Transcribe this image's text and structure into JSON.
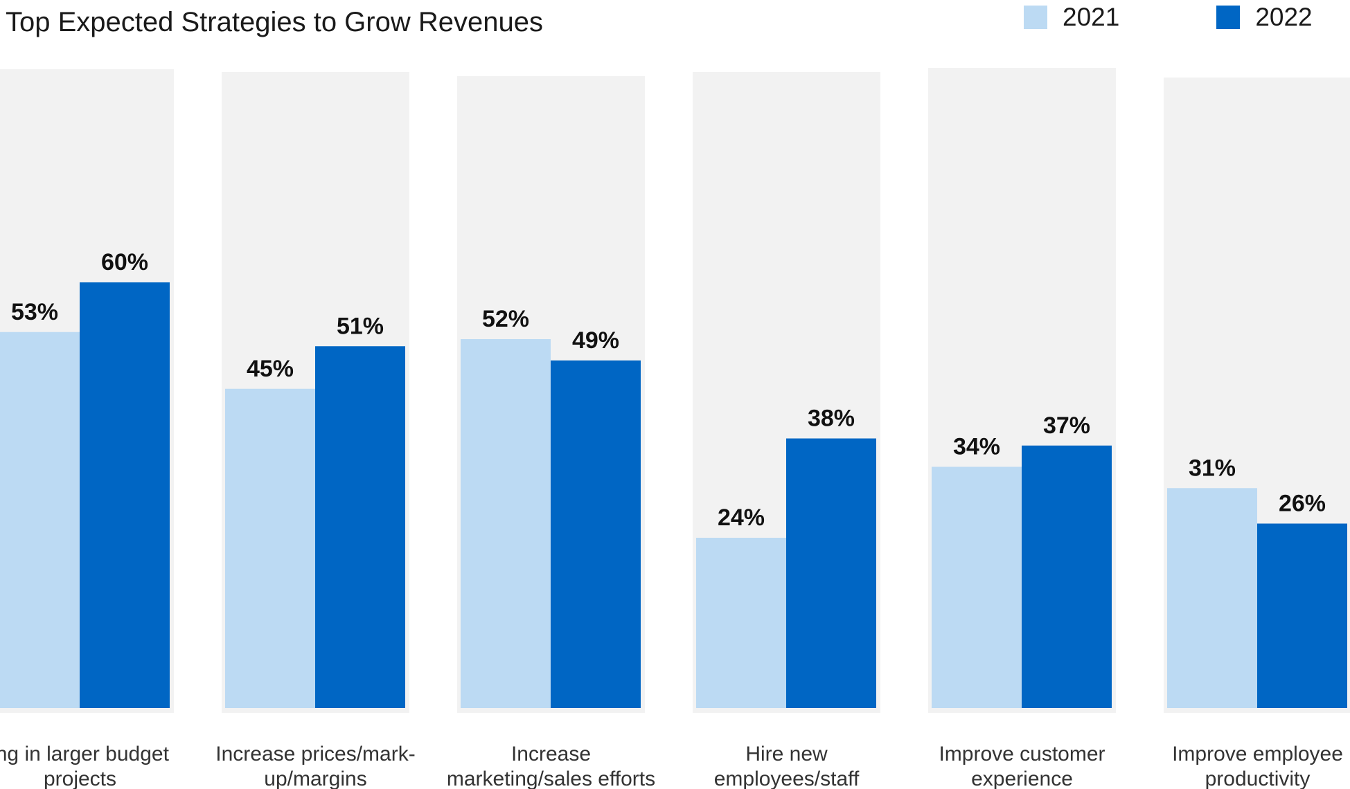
{
  "chart_data": {
    "type": "bar",
    "title": "Top Expected Strategies to Grow Revenues",
    "categories": [
      [
        "ing in larger budget",
        "projects"
      ],
      [
        "Increase prices/mark-",
        "up/margins"
      ],
      [
        "Increase",
        "marketing/sales efforts"
      ],
      [
        "Hire new",
        "employees/staff"
      ],
      [
        "Improve customer",
        "experience"
      ],
      [
        "Improve employee",
        "productivity"
      ]
    ],
    "series": [
      {
        "name": "2021",
        "color": "#bcdaf3",
        "values": [
          53,
          45,
          52,
          24,
          34,
          31
        ],
        "labels": [
          "53%",
          "45%",
          "52%",
          "24%",
          "34%",
          "31%"
        ]
      },
      {
        "name": "2022",
        "color": "#0066c4",
        "values": [
          60,
          51,
          49,
          38,
          37,
          26
        ],
        "labels": [
          "60%",
          "51%",
          "49%",
          "38%",
          "37%",
          "26%"
        ]
      }
    ],
    "ylim": [
      0,
      100
    ],
    "background_panel_color": "#f2f2f2",
    "legend_position": "top-right",
    "grid": false
  }
}
